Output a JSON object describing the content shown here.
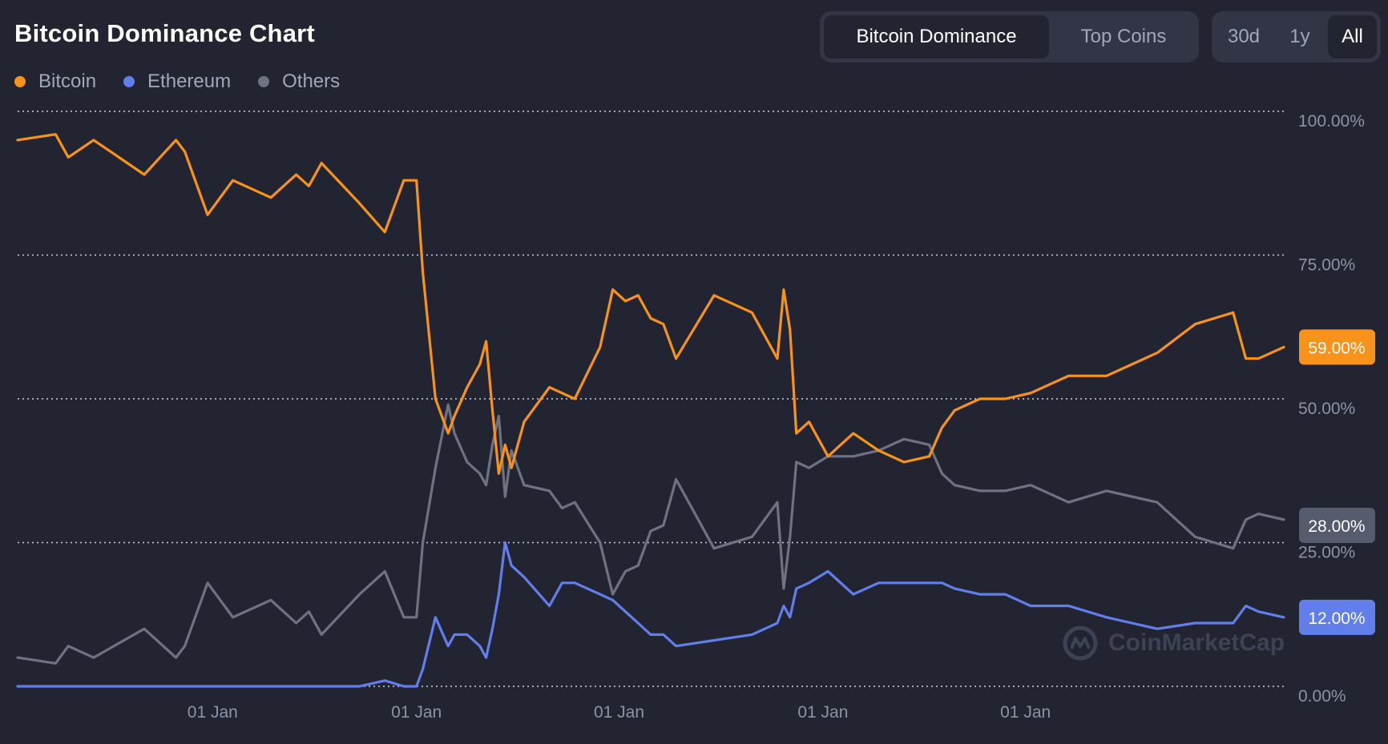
{
  "header": {
    "title": "Bitcoin Dominance Chart",
    "view_tabs": [
      {
        "label": "Bitcoin Dominance",
        "active": true
      },
      {
        "label": "Top Coins",
        "active": false
      }
    ],
    "range_tabs": [
      {
        "label": "30d",
        "active": false
      },
      {
        "label": "1y",
        "active": false
      },
      {
        "label": "All",
        "active": true
      }
    ]
  },
  "legend": [
    {
      "label": "Bitcoin",
      "color": "#f7931a"
    },
    {
      "label": "Ethereum",
      "color": "#627eea"
    },
    {
      "label": "Others",
      "color": "#6e7282"
    }
  ],
  "watermark": {
    "text": "CoinMarketCap",
    "icon": "coinmarketcap-logo-icon"
  },
  "chart_data": {
    "type": "line",
    "title": "Bitcoin Dominance Chart",
    "y_axis": {
      "position": "right",
      "ticks": [
        "100.00%",
        "75.00%",
        "50.00%",
        "25.00%",
        "0.00%"
      ],
      "ylim": [
        0,
        100
      ]
    },
    "x_axis": {
      "ticks": [
        "01 Jan",
        "01 Jan",
        "01 Jan",
        "01 Jan",
        "01 Jan"
      ],
      "tick_index": [
        0.154,
        0.315,
        0.475,
        0.636,
        0.796
      ]
    },
    "grid": "horizontal-dotted",
    "current_labels": [
      {
        "series": "Bitcoin",
        "text": "59.00%",
        "value": 59,
        "color": "#f7931a"
      },
      {
        "series": "Others",
        "text": "28.00%",
        "value": 28,
        "color": "#565b6d"
      },
      {
        "series": "Ethereum",
        "text": "12.00%",
        "value": 12,
        "color": "#627eea"
      }
    ],
    "x": [
      0,
      0.03,
      0.04,
      0.06,
      0.1,
      0.125,
      0.132,
      0.15,
      0.17,
      0.2,
      0.22,
      0.23,
      0.24,
      0.27,
      0.29,
      0.305,
      0.315,
      0.32,
      0.33,
      0.34,
      0.345,
      0.355,
      0.365,
      0.37,
      0.375,
      0.38,
      0.385,
      0.39,
      0.4,
      0.42,
      0.43,
      0.44,
      0.46,
      0.47,
      0.48,
      0.49,
      0.5,
      0.51,
      0.52,
      0.55,
      0.58,
      0.6,
      0.605,
      0.61,
      0.615,
      0.625,
      0.64,
      0.66,
      0.68,
      0.7,
      0.72,
      0.73,
      0.74,
      0.76,
      0.78,
      0.8,
      0.83,
      0.86,
      0.9,
      0.93,
      0.96,
      0.97,
      0.98,
      1.0
    ],
    "series": [
      {
        "name": "Bitcoin",
        "color": "#f7931a",
        "values": [
          95,
          96,
          92,
          95,
          89,
          95,
          93,
          82,
          88,
          85,
          89,
          87,
          91,
          84,
          79,
          88,
          88,
          72,
          50,
          44,
          47,
          52,
          56,
          60,
          48,
          37,
          42,
          38,
          46,
          52,
          51,
          50,
          59,
          69,
          67,
          68,
          64,
          63,
          57,
          68,
          65,
          57,
          69,
          62,
          44,
          46,
          40,
          44,
          41,
          39,
          40,
          45,
          48,
          50,
          50,
          51,
          54,
          54,
          58,
          63,
          65,
          57,
          57,
          59
        ]
      },
      {
        "name": "Ethereum",
        "color": "#627eea",
        "values": [
          0,
          0,
          0,
          0,
          0,
          0,
          0,
          0,
          0,
          0,
          0,
          0,
          0,
          0,
          1,
          0,
          0,
          3,
          12,
          7,
          9,
          9,
          7,
          5,
          10,
          16,
          25,
          21,
          19,
          14,
          18,
          18,
          16,
          15,
          13,
          11,
          9,
          9,
          7,
          8,
          9,
          11,
          14,
          12,
          17,
          18,
          20,
          16,
          18,
          18,
          18,
          18,
          17,
          16,
          16,
          14,
          14,
          12,
          10,
          11,
          11,
          14,
          13,
          12
        ]
      },
      {
        "name": "Others",
        "color": "#6e7282",
        "values": [
          5,
          4,
          7,
          5,
          10,
          5,
          7,
          18,
          12,
          15,
          11,
          13,
          9,
          16,
          20,
          12,
          12,
          25,
          38,
          49,
          44,
          39,
          37,
          35,
          42,
          47,
          33,
          41,
          35,
          34,
          31,
          32,
          25,
          16,
          20,
          21,
          27,
          28,
          36,
          24,
          26,
          32,
          17,
          26,
          39,
          38,
          40,
          40,
          41,
          43,
          42,
          37,
          35,
          34,
          34,
          35,
          32,
          34,
          32,
          26,
          24,
          29,
          30,
          29
        ]
      }
    ]
  }
}
